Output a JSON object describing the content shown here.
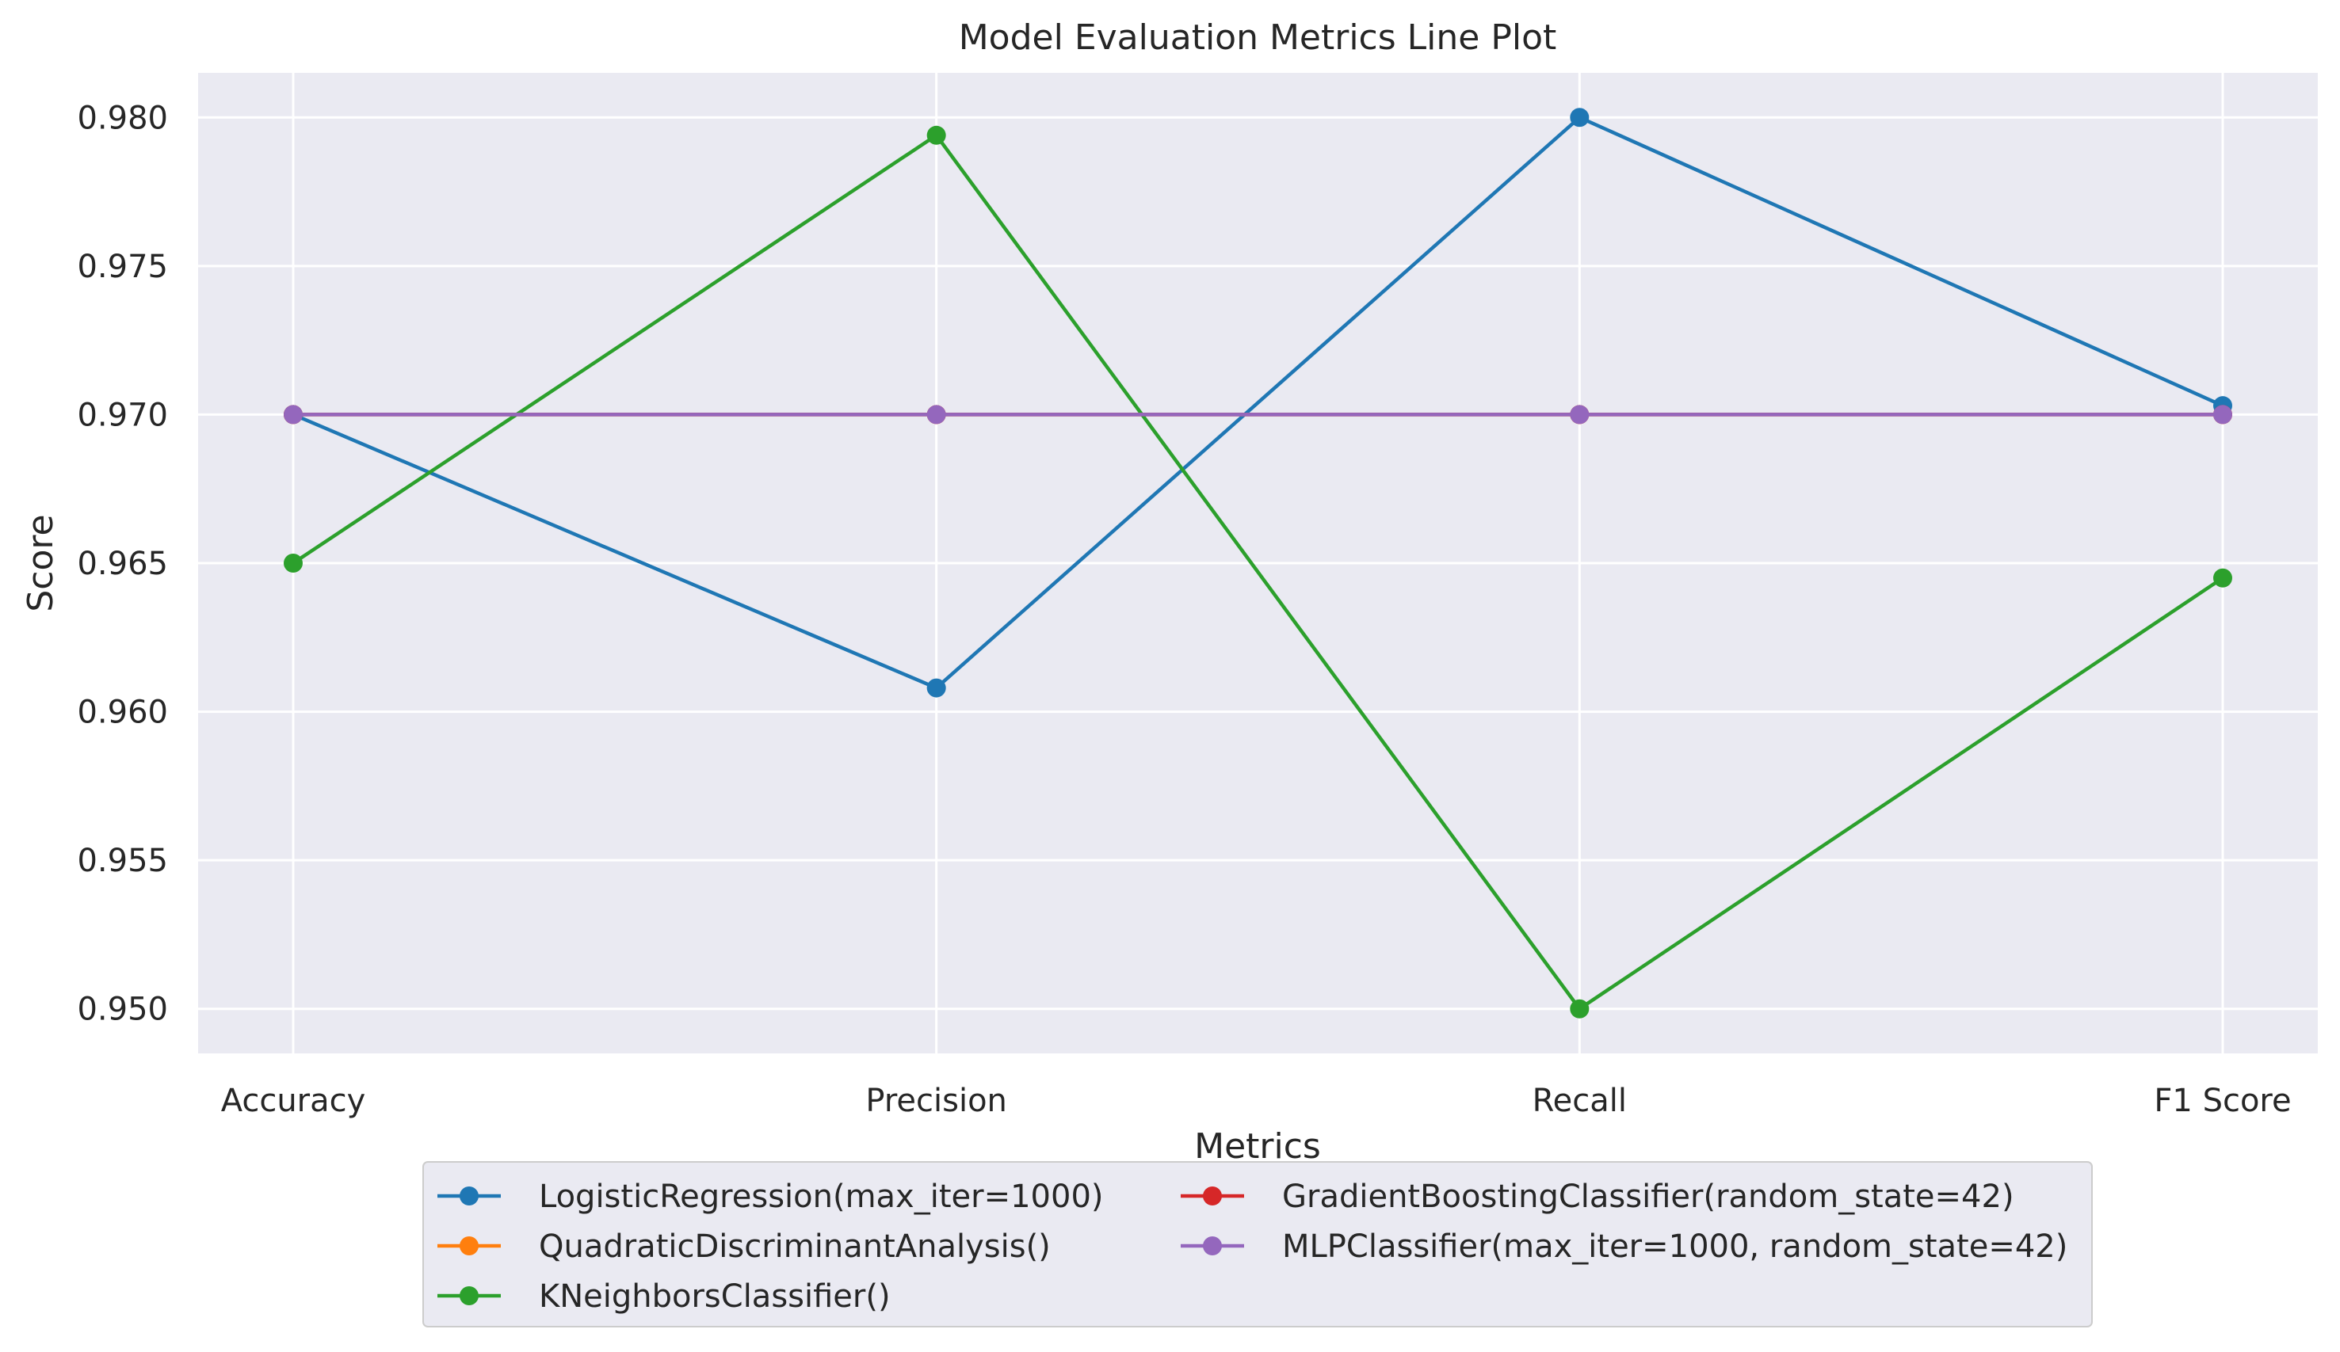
{
  "chart_data": {
    "type": "line",
    "title": "Model Evaluation Metrics Line Plot",
    "xlabel": "Metrics",
    "ylabel": "Score",
    "categories": [
      "Accuracy",
      "Precision",
      "Recall",
      "F1 Score"
    ],
    "ylim": [
      0.9485,
      0.9815
    ],
    "yticks": [
      0.95,
      0.955,
      0.96,
      0.965,
      0.97,
      0.975,
      0.98
    ],
    "ytick_labels": [
      "0.950",
      "0.955",
      "0.960",
      "0.965",
      "0.970",
      "0.975",
      "0.980"
    ],
    "grid": true,
    "legend_position": "bottom-center",
    "legend_columns": 2,
    "series": [
      {
        "name": "LogisticRegression(max_iter=1000)",
        "color": "#1f77b4",
        "values": [
          0.97,
          0.9608,
          0.98,
          0.9703
        ]
      },
      {
        "name": "QuadraticDiscriminantAnalysis()",
        "color": "#ff7f0e",
        "values": [
          0.97,
          0.97,
          0.97,
          0.97
        ]
      },
      {
        "name": "KNeighborsClassifier()",
        "color": "#2ca02c",
        "values": [
          0.965,
          0.9794,
          0.95,
          0.9645
        ]
      },
      {
        "name": "GradientBoostingClassifier(random_state=42)",
        "color": "#d62728",
        "values": [
          0.97,
          0.97,
          0.97,
          0.97
        ]
      },
      {
        "name": "MLPClassifier(max_iter=1000, random_state=42)",
        "color": "#9467bd",
        "values": [
          0.97,
          0.97,
          0.97,
          0.97
        ]
      }
    ],
    "background_color": "#eaeaf2",
    "grid_color": "#ffffff"
  }
}
